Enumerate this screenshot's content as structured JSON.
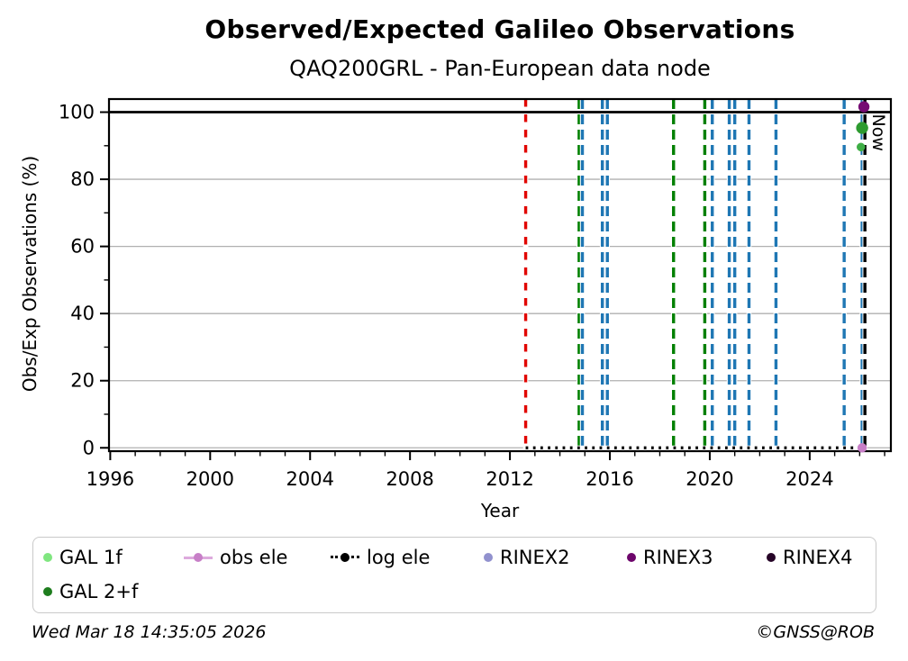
{
  "figure": {
    "title": "Observed/Expected Galileo Observations",
    "subtitle": "QAQ200GRL - Pan-European data node"
  },
  "axes": {
    "xlabel": "Year",
    "ylabel": "Obs/Exp Observations (%)"
  },
  "legend": {
    "items": [
      {
        "label": "GAL 1f",
        "marker": "dot",
        "color": "#80e680"
      },
      {
        "label": "obs ele",
        "marker": "line-dot",
        "color": "#ddaadd",
        "marker_color": "#c77fc7"
      },
      {
        "label": "log ele",
        "marker": "dotted-line-dot",
        "color": "#000000"
      },
      {
        "label": "RINEX2",
        "marker": "dot",
        "color": "#9191ce"
      },
      {
        "label": "RINEX3",
        "marker": "dot",
        "color": "#6d056b"
      },
      {
        "label": "RINEX4",
        "marker": "dot",
        "color": "#260427"
      },
      {
        "label": "GAL 2+f",
        "marker": "dot",
        "color": "#1e7d1e"
      }
    ]
  },
  "footer": {
    "timestamp": "Wed Mar 18 14:35:05 2026",
    "copyright": "©GNSS@ROB"
  },
  "chart_data": {
    "type": "scatter",
    "title": "Observed/Expected Galileo Observations",
    "subtitle": "QAQ200GRL - Pan-European data node",
    "xlabel": "Year",
    "ylabel": "Obs/Exp Observations (%)",
    "xlim": [
      1995.95,
      2027.25
    ],
    "ylim": [
      -1,
      103.9
    ],
    "xticks_major": [
      1996,
      2000,
      2004,
      2008,
      2012,
      2016,
      2020,
      2024
    ],
    "xticks_minor_step": 1,
    "yticks_major": [
      0,
      20,
      40,
      60,
      80,
      100
    ],
    "yticks_minor": [
      10,
      30,
      50,
      70,
      90
    ],
    "grid": "horizontal",
    "grid_color": "#b0b0b0",
    "hline": {
      "y": 100,
      "color": "#000000",
      "style": "solid"
    },
    "event_lines": [
      {
        "year": 2012.63,
        "color": "#008000",
        "style": "solid"
      },
      {
        "year": 2012.63,
        "color": "#e10600",
        "style": "dashed-alt"
      },
      {
        "year": 2014.77,
        "color": "#008000",
        "style": "dashed"
      },
      {
        "year": 2014.9,
        "color": "#1f77b4",
        "style": "dashed"
      },
      {
        "year": 2015.7,
        "color": "#1f77b4",
        "style": "dashed"
      },
      {
        "year": 2015.9,
        "color": "#1f77b4",
        "style": "dashed"
      },
      {
        "year": 2018.55,
        "color": "#008000",
        "style": "dashed"
      },
      {
        "year": 2019.8,
        "color": "#008000",
        "style": "dashed"
      },
      {
        "year": 2020.1,
        "color": "#1f77b4",
        "style": "dashed"
      },
      {
        "year": 2020.78,
        "color": "#1f77b4",
        "style": "dashed"
      },
      {
        "year": 2021.0,
        "color": "#1f77b4",
        "style": "dashed"
      },
      {
        "year": 2021.57,
        "color": "#1f77b4",
        "style": "dashed"
      },
      {
        "year": 2022.65,
        "color": "#1f77b4",
        "style": "dashed"
      },
      {
        "year": 2025.38,
        "color": "#1f77b4",
        "style": "dashed"
      },
      {
        "year": 2026.1,
        "color": "#1f77b4",
        "style": "dashed"
      }
    ],
    "now_line": {
      "year": 2026.21,
      "color": "#000000",
      "style": "dashed",
      "label": "Now"
    },
    "log_ele_line": {
      "y": 0,
      "x_start": 2012.63,
      "x_end": 2026.21,
      "color": "#000000",
      "style": "dotted"
    },
    "points": [
      {
        "series": "RINEX3",
        "x": 2026.17,
        "y": 101.6,
        "color": "#750b73",
        "size": 6
      },
      {
        "series": "GAL 2+f",
        "x": 2026.1,
        "y": 95.3,
        "color": "#2d9b30",
        "size": 6.5
      },
      {
        "series": "GAL 1f",
        "x": 2026.05,
        "y": 89.6,
        "color": "#3fae46",
        "size": 4.5
      },
      {
        "series": "obs ele",
        "x": 2026.1,
        "y": 0,
        "color": "#c77fc7",
        "size": 5
      }
    ],
    "legend_entries": [
      "GAL 1f",
      "obs ele",
      "log ele",
      "RINEX2",
      "RINEX3",
      "RINEX4",
      "GAL 2+f"
    ],
    "legend_position": "bottom"
  }
}
